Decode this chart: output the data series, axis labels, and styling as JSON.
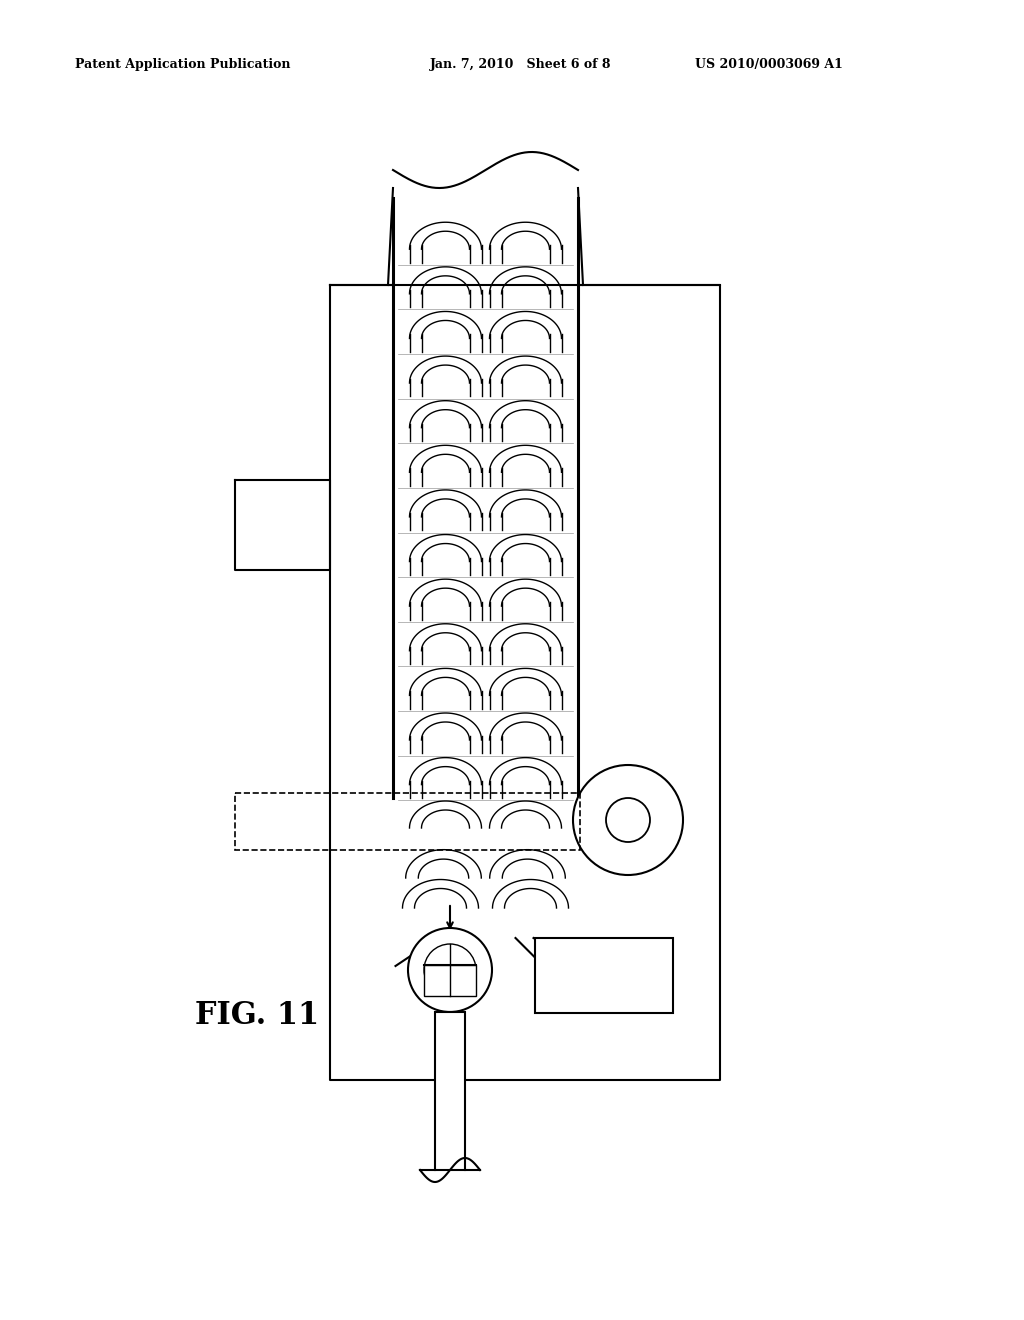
{
  "header_left": "Patent Application Publication",
  "header_center": "Jan. 7, 2010   Sheet 6 of 8",
  "header_right": "US 2010/0003069 A1",
  "bg_color": "#ffffff",
  "line_color": "#000000",
  "fig_label": "FIG. 11"
}
